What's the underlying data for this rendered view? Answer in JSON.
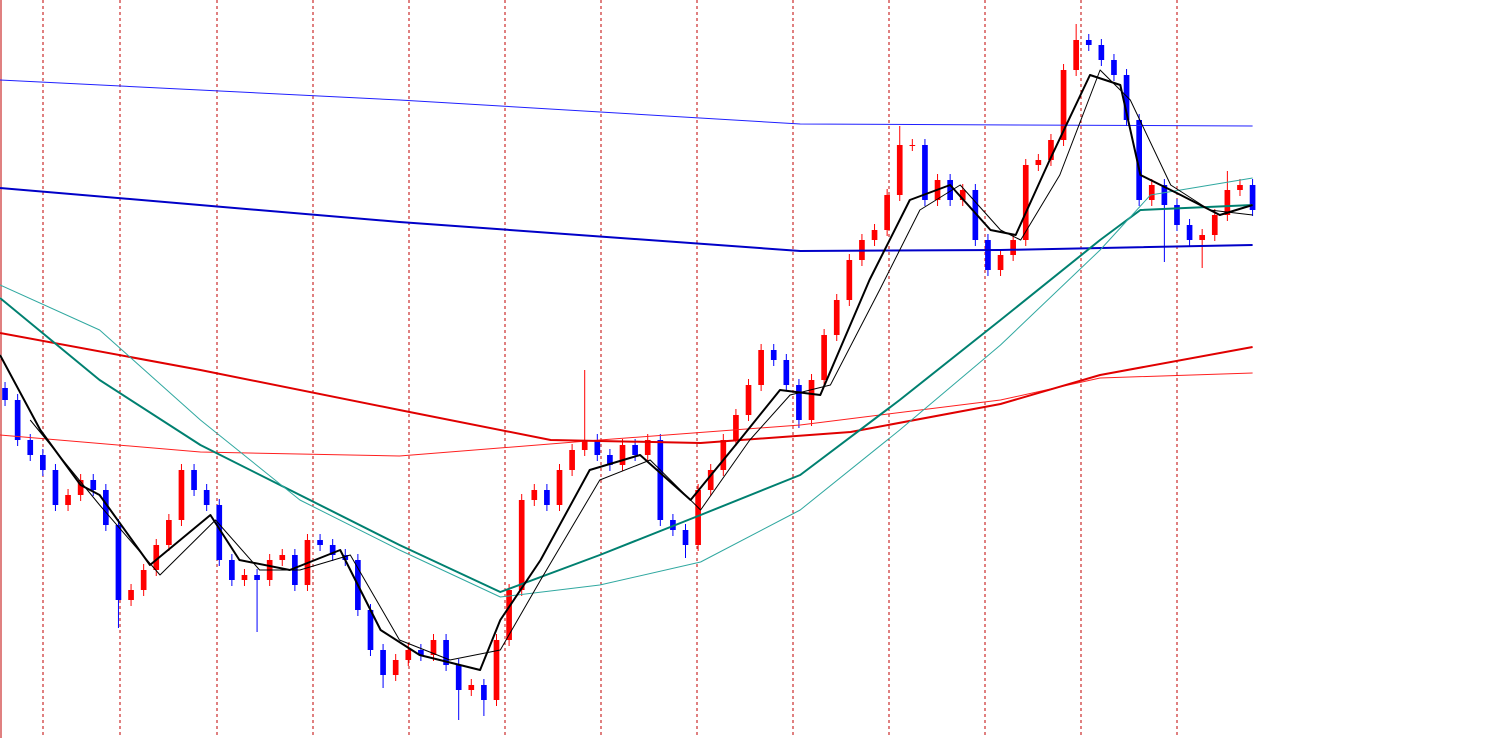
{
  "chart_data": {
    "type": "candlestick",
    "xlim": [
      -0.4,
      118
    ],
    "ylim": [
      0,
      738
    ],
    "up_color": "#ff0000",
    "down_color": "#0000ff",
    "open": [
      350,
      338,
      298,
      283,
      268,
      233,
      243,
      258,
      248,
      213,
      138,
      148,
      168,
      193,
      218,
      268,
      248,
      233,
      178,
      158,
      163,
      158,
      178,
      183,
      153,
      198,
      193,
      183,
      178,
      128,
      88,
      63,
      78,
      88,
      83,
      98,
      73,
      48,
      53,
      38,
      98,
      148,
      238,
      248,
      233,
      268,
      288,
      298,
      283,
      273,
      293,
      283,
      298,
      218,
      208,
      193,
      248,
      268,
      298,
      323,
      353,
      388,
      378,
      353,
      318,
      358,
      403,
      438,
      478,
      498,
      508,
      543,
      593,
      593,
      538,
      558,
      538,
      548,
      498,
      468,
      483,
      498,
      573,
      578,
      598,
      668,
      698,
      693,
      678,
      663,
      618,
      538,
      553,
      533,
      513,
      498,
      503,
      523,
      548,
      553
    ],
    "high": [
      356,
      344,
      304,
      289,
      274,
      249,
      264,
      264,
      254,
      219,
      154,
      174,
      199,
      224,
      274,
      274,
      254,
      239,
      184,
      169,
      169,
      184,
      189,
      189,
      204,
      204,
      199,
      189,
      184,
      134,
      94,
      84,
      94,
      94,
      104,
      104,
      79,
      59,
      59,
      104,
      154,
      244,
      254,
      254,
      274,
      294,
      368,
      304,
      289,
      299,
      299,
      304,
      304,
      224,
      214,
      254,
      274,
      304,
      329,
      359,
      394,
      394,
      384,
      359,
      364,
      409,
      444,
      484,
      504,
      514,
      549,
      612,
      599,
      599,
      564,
      564,
      554,
      554,
      504,
      489,
      504,
      579,
      584,
      604,
      674,
      714,
      704,
      699,
      684,
      669,
      624,
      559,
      559,
      539,
      519,
      509,
      529,
      567,
      559,
      559
    ],
    "low": [
      332,
      292,
      277,
      262,
      227,
      227,
      237,
      242,
      207,
      110,
      132,
      142,
      162,
      187,
      212,
      242,
      227,
      172,
      152,
      152,
      106,
      152,
      172,
      147,
      147,
      187,
      177,
      172,
      122,
      82,
      50,
      57,
      72,
      77,
      77,
      67,
      18,
      42,
      22,
      32,
      92,
      142,
      232,
      227,
      227,
      262,
      282,
      277,
      267,
      267,
      277,
      277,
      212,
      202,
      180,
      187,
      242,
      262,
      292,
      317,
      347,
      372,
      347,
      310,
      312,
      352,
      397,
      432,
      472,
      492,
      502,
      537,
      587,
      532,
      532,
      532,
      532,
      492,
      462,
      462,
      477,
      492,
      567,
      572,
      592,
      662,
      687,
      672,
      657,
      612,
      532,
      532,
      476,
      507,
      492,
      470,
      497,
      517,
      542,
      522
    ],
    "close": [
      338,
      298,
      283,
      268,
      233,
      243,
      258,
      248,
      213,
      138,
      148,
      168,
      193,
      218,
      268,
      248,
      233,
      178,
      158,
      163,
      158,
      178,
      183,
      153,
      198,
      193,
      183,
      178,
      128,
      88,
      63,
      78,
      88,
      83,
      98,
      73,
      48,
      53,
      38,
      98,
      148,
      238,
      248,
      233,
      268,
      288,
      298,
      283,
      273,
      293,
      283,
      298,
      218,
      208,
      193,
      248,
      268,
      298,
      323,
      353,
      388,
      378,
      353,
      318,
      358,
      403,
      438,
      478,
      498,
      508,
      543,
      593,
      593,
      538,
      558,
      538,
      548,
      498,
      468,
      483,
      498,
      573,
      578,
      598,
      668,
      698,
      693,
      678,
      663,
      618,
      538,
      553,
      533,
      513,
      498,
      503,
      523,
      548,
      553,
      528
    ],
    "lines": [
      {
        "color": "#2020ff",
        "width": 1,
        "x": [
          -0.4,
          31.3,
          63.1,
          99.0
        ],
        "values": [
          658,
          638,
          614,
          612
        ]
      },
      {
        "color": "#0000c8",
        "width": 2,
        "x": [
          -0.4,
          31.3,
          63.1,
          79.0,
          99.0
        ],
        "values": [
          550,
          516,
          487,
          488,
          493
        ]
      },
      {
        "color": "#ff2020",
        "width": 1,
        "x": [
          -0.4,
          15.5,
          31.3,
          47.2,
          63.1,
          79.0,
          86.9,
          99.0
        ],
        "values": [
          303,
          286,
          282,
          298,
          313,
          338,
          360,
          365
        ]
      },
      {
        "color": "#e00000",
        "width": 2,
        "x": [
          -0.4,
          15.5,
          31.3,
          43.3,
          55.2,
          67.1,
          79.0,
          86.9,
          99.0
        ],
        "values": [
          405,
          368,
          328,
          298,
          295,
          306,
          334,
          363,
          391
        ]
      },
      {
        "color": "#008070",
        "width": 2,
        "x": [
          -0.4,
          7.5,
          15.5,
          23.4,
          31.3,
          39.3,
          47.2,
          55.2,
          63.1,
          71.0,
          79.0,
          86.9,
          90.1,
          99.0
        ],
        "values": [
          440,
          358,
          293,
          243,
          193,
          146,
          183,
          223,
          263,
          338,
          418,
          498,
          528,
          533
        ]
      },
      {
        "color": "#30a8a0",
        "width": 1,
        "x": [
          -0.4,
          7.5,
          15.5,
          23.4,
          31.3,
          39.3,
          47.2,
          55.2,
          63.1,
          71.0,
          79.0,
          86.9,
          90.9,
          99.0
        ],
        "values": [
          453,
          408,
          318,
          238,
          188,
          141,
          153,
          176,
          228,
          308,
          393,
          488,
          543,
          560
        ]
      },
      {
        "color": "#000000",
        "width": 2,
        "x": [
          -0.4,
          2.8,
          6.0,
          7.5,
          11.5,
          16.3,
          18.6,
          22.6,
          26.6,
          29.8,
          32.9,
          37.7,
          39.3,
          42.5,
          46.4,
          50.4,
          54.4,
          58.3,
          61.5,
          64.7,
          68.6,
          71.8,
          75.0,
          78.2,
          80.2,
          82.9,
          86.1,
          88.5,
          90.1,
          93.3,
          96.4,
          99.0
        ],
        "values": [
          383,
          308,
          253,
          243,
          173,
          223,
          178,
          168,
          188,
          108,
          83,
          68,
          118,
          178,
          268,
          283,
          238,
          298,
          348,
          343,
          458,
          538,
          553,
          508,
          503,
          578,
          663,
          653,
          563,
          543,
          523,
          533
        ]
      },
      {
        "color": "#000000",
        "width": 1,
        "x": [
          2.0,
          7.5,
          12.3,
          16.7,
          20.2,
          23.4,
          27.4,
          31.3,
          35.3,
          39.3,
          42.5,
          47.2,
          51.2,
          55.2,
          59.1,
          62.3,
          65.5,
          69.4,
          72.6,
          75.8,
          79.0,
          80.6,
          83.7,
          86.9,
          89.3,
          92.5,
          95.6,
          99.0
        ],
        "values": [
          318,
          233,
          163,
          218,
          168,
          168,
          183,
          98,
          78,
          88,
          158,
          258,
          278,
          228,
          298,
          343,
          353,
          448,
          528,
          553,
          508,
          498,
          563,
          668,
          638,
          553,
          528,
          523
        ]
      }
    ]
  }
}
